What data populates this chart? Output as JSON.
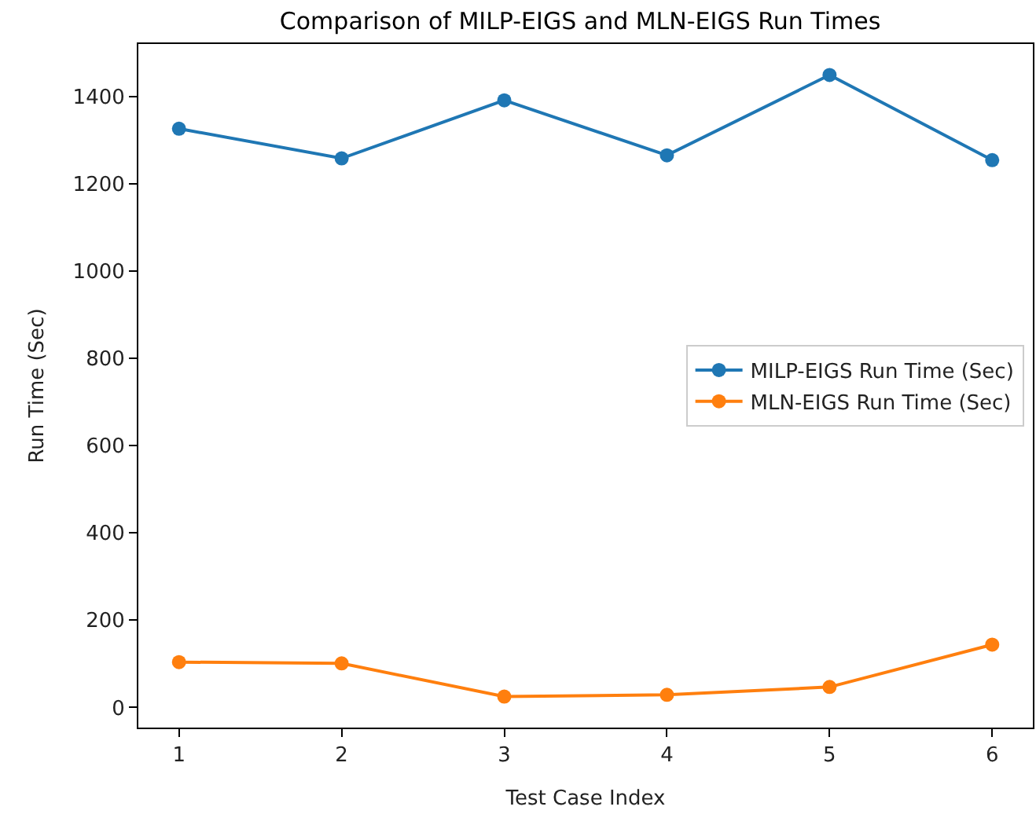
{
  "chart_data": {
    "type": "line",
    "title": "Comparison of MILP-EIGS and MLN-EIGS Run Times",
    "xlabel": "Test Case Index",
    "ylabel": "Run Time (Sec)",
    "x": [
      1,
      2,
      3,
      4,
      5,
      6
    ],
    "series": [
      {
        "name": "MILP-EIGS Run Time (Sec)",
        "color": "#1f77b4",
        "values": [
          1326,
          1258,
          1391,
          1265,
          1449,
          1254
        ]
      },
      {
        "name": "MLN-EIGS Run Time (Sec)",
        "color": "#ff7f0e",
        "values": [
          104,
          101,
          25,
          29,
          47,
          144
        ]
      }
    ],
    "xlim": [
      0.75,
      6.25
    ],
    "xticks": [
      1,
      2,
      3,
      4,
      5,
      6
    ],
    "ylim": [
      -46,
      1520
    ],
    "yticks": [
      0,
      200,
      400,
      600,
      800,
      1000,
      1200,
      1400
    ],
    "legend": "right",
    "marker": "circle",
    "line_style": "solid"
  }
}
